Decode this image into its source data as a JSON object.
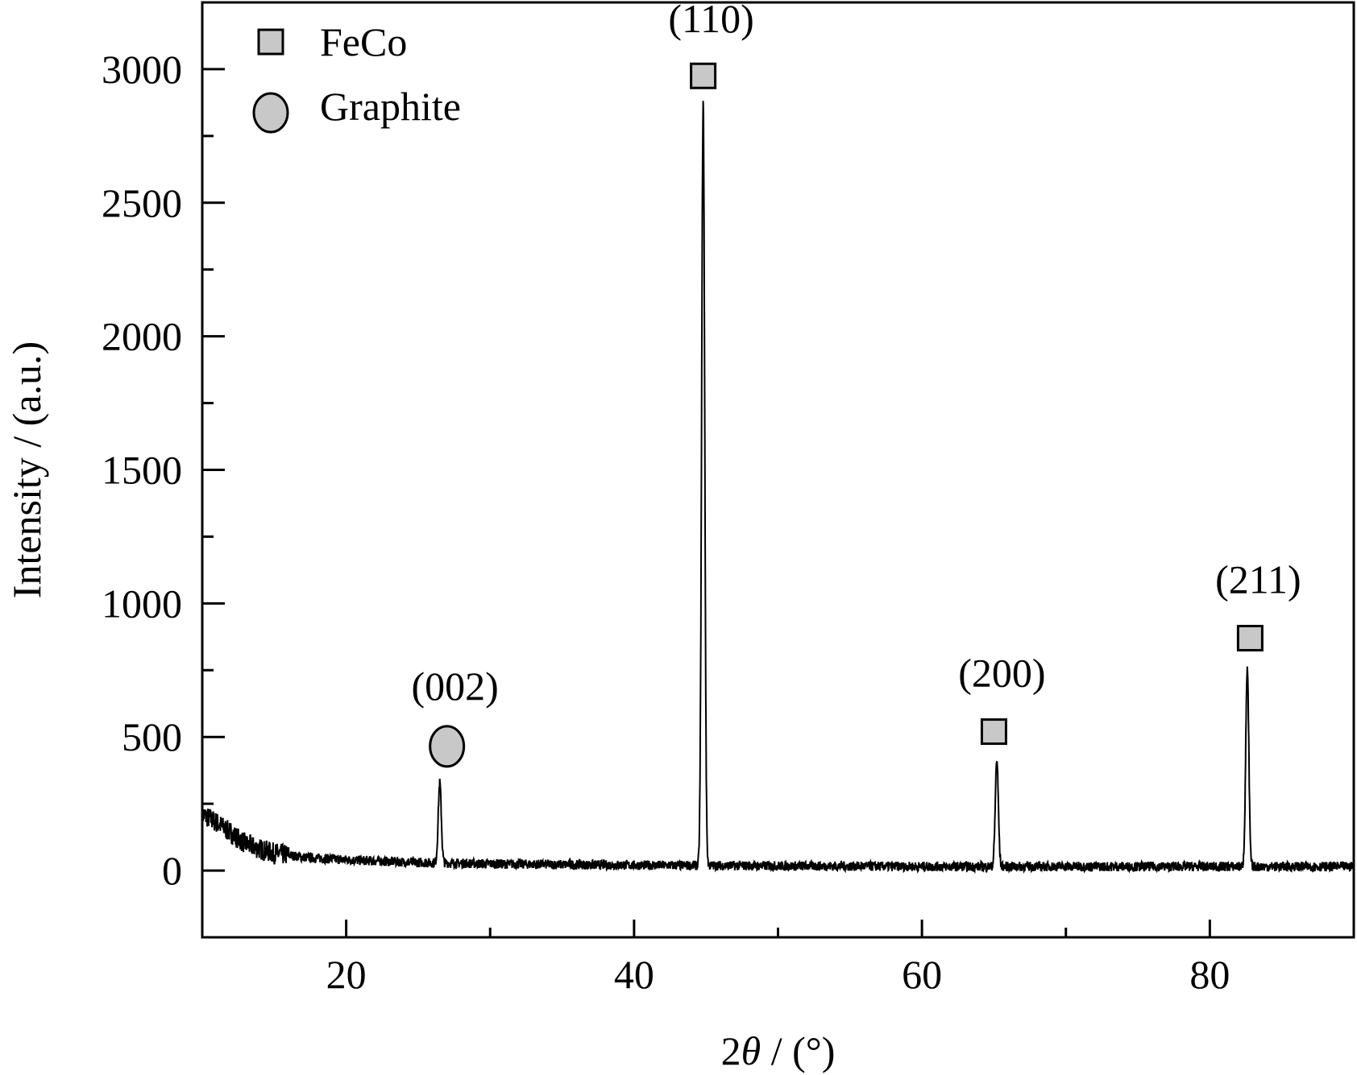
{
  "chart_data": {
    "type": "line",
    "xlabel_prefix": "2",
    "xlabel_symbol": "θ",
    "xlabel_suffix": " / (°)",
    "ylabel": "Intensity / (a.u.)",
    "xlim": [
      10,
      90
    ],
    "ylim": [
      -250,
      3250
    ],
    "x_ticks": [
      20,
      40,
      60,
      80
    ],
    "x_minor_ticks": [
      30,
      50,
      70
    ],
    "y_ticks": [
      0,
      500,
      1000,
      1500,
      2000,
      2500,
      3000
    ],
    "y_minor_step": 250,
    "grid": false,
    "legend_position": "top-left",
    "legend": [
      {
        "label": "FeCo",
        "marker": "square"
      },
      {
        "label": "Graphite",
        "marker": "circle"
      }
    ],
    "series": [
      {
        "line_color": "#000000",
        "baseline": [
          {
            "x": 10,
            "y": 210
          },
          {
            "x": 11,
            "y": 180
          },
          {
            "x": 12,
            "y": 140
          },
          {
            "x": 13,
            "y": 100
          },
          {
            "x": 14,
            "y": 80
          },
          {
            "x": 15,
            "y": 65
          },
          {
            "x": 17,
            "y": 50
          },
          {
            "x": 20,
            "y": 40
          },
          {
            "x": 25,
            "y": 30
          },
          {
            "x": 30,
            "y": 25
          },
          {
            "x": 40,
            "y": 20
          },
          {
            "x": 60,
            "y": 15
          },
          {
            "x": 90,
            "y": 15
          }
        ],
        "peaks": [
          {
            "x": 26.5,
            "height": 300,
            "width": 0.15
          },
          {
            "x": 44.8,
            "height": 2850,
            "width": 0.15
          },
          {
            "x": 65.2,
            "height": 400,
            "width": 0.15
          },
          {
            "x": 82.6,
            "height": 740,
            "width": 0.15
          }
        ],
        "noise_amplitude": 18
      }
    ],
    "annotations": [
      {
        "label": "(002)",
        "phase": "Graphite",
        "marker": "circle",
        "x": 27.0,
        "marker_y": 465,
        "label_y": 690
      },
      {
        "label": "(110)",
        "phase": "FeCo",
        "marker": "square",
        "x": 44.8,
        "marker_y": 2975,
        "label_y": 3190
      },
      {
        "label": "(200)",
        "phase": "FeCo",
        "marker": "square",
        "x": 65.0,
        "marker_y": 520,
        "label_y": 740
      },
      {
        "label": "(211)",
        "phase": "FeCo",
        "marker": "square",
        "x": 82.8,
        "marker_y": 870,
        "label_y": 1090
      }
    ],
    "colors": {
      "marker_fill": "#c8c8c8",
      "marker_stroke": "#000000",
      "line": "#000000"
    }
  }
}
